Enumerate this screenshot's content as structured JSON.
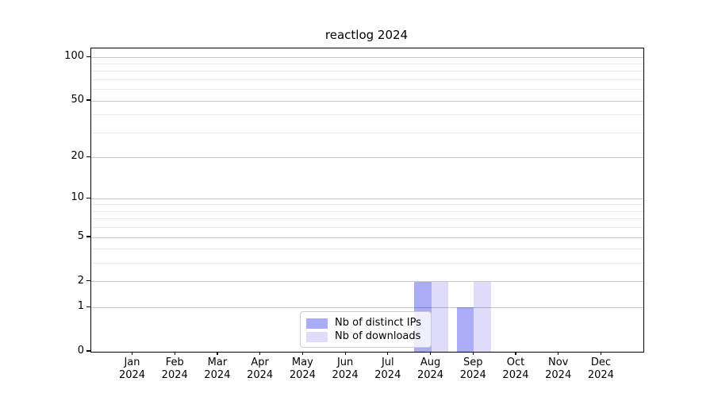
{
  "chart_data": {
    "type": "bar",
    "title": "reactlog 2024",
    "categories": [
      "Jan",
      "Feb",
      "Mar",
      "Apr",
      "May",
      "Jun",
      "Jul",
      "Aug",
      "Sep",
      "Oct",
      "Nov",
      "Dec"
    ],
    "year_label": "2024",
    "series": [
      {
        "name": "Nb of distinct IPs",
        "color": "#abacf6",
        "values": [
          0,
          0,
          0,
          0,
          0,
          0,
          0,
          2,
          1,
          0,
          0,
          0
        ]
      },
      {
        "name": "Nb of downloads",
        "color": "#dedcf8",
        "values": [
          0,
          0,
          0,
          0,
          0,
          0,
          0,
          2,
          2,
          0,
          0,
          0
        ]
      }
    ],
    "xlabel": "",
    "ylabel": "",
    "y_scale": "log1p",
    "y_ticks": [
      0,
      1,
      2,
      5,
      10,
      20,
      50,
      100
    ],
    "y_minor_gridlines": [
      3,
      4,
      6,
      7,
      8,
      9,
      30,
      40,
      60,
      70,
      80,
      90
    ],
    "ylim": [
      0,
      115
    ],
    "grid": "horizontal",
    "legend_position": "lower-center"
  }
}
